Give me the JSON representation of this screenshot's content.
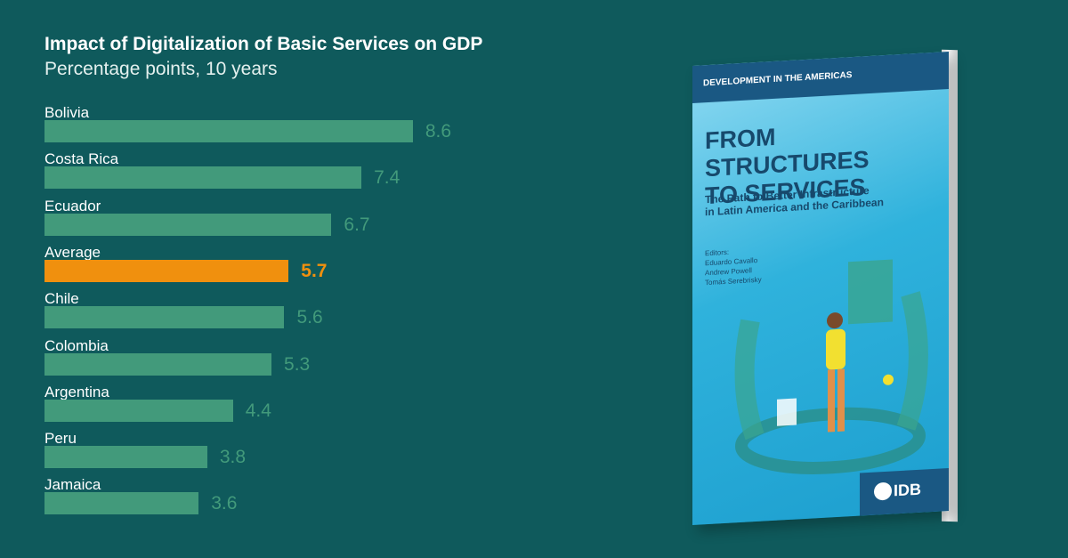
{
  "chart_data": {
    "type": "bar",
    "orientation": "horizontal",
    "title": "Impact of Digitalization of Basic Services on GDP",
    "subtitle": "Percentage points, 10 years",
    "categories": [
      "Bolivia",
      "Costa Rica",
      "Ecuador",
      "Average",
      "Chile",
      "Colombia",
      "Argentina",
      "Peru",
      "Jamaica"
    ],
    "values": [
      8.6,
      7.4,
      6.7,
      5.7,
      5.6,
      5.3,
      4.4,
      3.8,
      3.6
    ],
    "value_labels": [
      "8.6",
      "7.4",
      "6.7",
      "5.7",
      "5.6",
      "5.3",
      "4.4",
      "3.8",
      "3.6"
    ],
    "highlight_category": "Average",
    "xlim": [
      0,
      13.3
    ],
    "grid": false,
    "colors": {
      "bar": "#429a7b",
      "highlight": "#f0900e",
      "background": "#0f5a5c"
    }
  },
  "book": {
    "series_label": "DEVELOPMENT IN THE AMERICAS",
    "title_line1": "FROM STRUCTURES",
    "title_line2": "TO SERVICES",
    "subtitle_line1": "The Path to Better Infrastructure",
    "subtitle_line2": "in Latin America and the Caribbean",
    "editors_label": "Editors:",
    "editor1": "Eduardo Cavallo",
    "editor2": "Andrew Powell",
    "editor3": "Tomás Serebrisky",
    "publisher": "IDB"
  }
}
